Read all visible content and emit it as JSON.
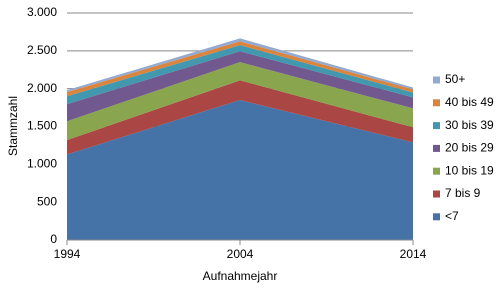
{
  "chart_data": {
    "type": "stacked-area",
    "x_label": "Aufnahmejahr",
    "y_label": "Stammzahl",
    "x": [
      1994,
      2004,
      2014
    ],
    "xlim": [
      1994,
      2014
    ],
    "xticks": [
      1994,
      2004,
      2014
    ],
    "ylim": [
      0,
      3000
    ],
    "yticks": [
      0,
      500,
      {
        "value": 1000,
        "label": "1.000"
      },
      {
        "value": 1500,
        "label": "1.500"
      },
      {
        "value": 2000,
        "label": "2.000"
      },
      {
        "value": 2500,
        "label": "2.500"
      },
      {
        "value": 3000,
        "label": "3.000"
      }
    ],
    "grid": true,
    "legend": "right",
    "series": [
      {
        "name": "<7",
        "color": "#4572a7",
        "values": [
          1130,
          1850,
          1290
        ]
      },
      {
        "name": "7 bis 9",
        "color": "#aa4643",
        "values": [
          190,
          260,
          200
        ]
      },
      {
        "name": "10 bis 19",
        "color": "#89a54e",
        "values": [
          250,
          240,
          250
        ]
      },
      {
        "name": "20 bis 29",
        "color": "#71588f",
        "values": [
          225,
          145,
          145
        ]
      },
      {
        "name": "30 bis 39",
        "color": "#4198af",
        "values": [
          105,
          80,
          65
        ]
      },
      {
        "name": "40 bis 49",
        "color": "#db843d",
        "values": [
          55,
          50,
          40
        ]
      },
      {
        "name": "50+",
        "color": "#93a9cf",
        "values": [
          25,
          40,
          25
        ]
      }
    ]
  }
}
